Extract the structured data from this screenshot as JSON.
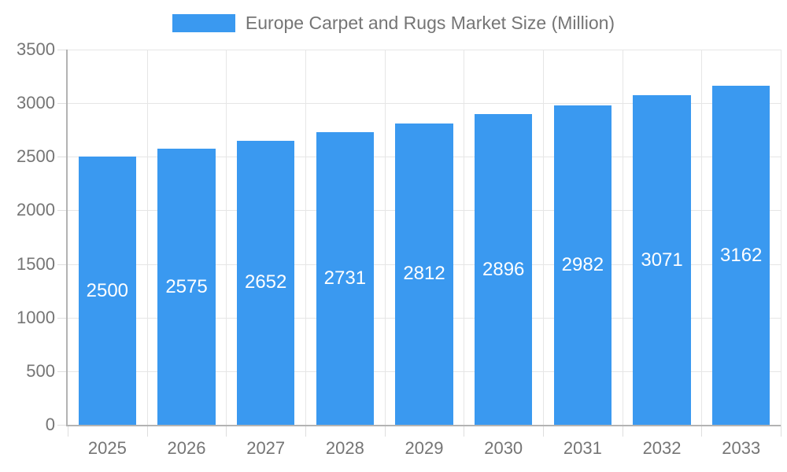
{
  "legend": {
    "position": "top-center",
    "items": [
      {
        "label": "Europe Carpet and Rugs Market Size (Million)",
        "swatch_color": "#3a99f0"
      }
    ]
  },
  "chart_data": {
    "type": "bar",
    "title": "Europe Carpet and Rugs Market Size (Million)",
    "categories": [
      "2025",
      "2026",
      "2027",
      "2028",
      "2029",
      "2030",
      "2031",
      "2032",
      "2033"
    ],
    "series": [
      {
        "name": "Europe Carpet and Rugs Market Size (Million)",
        "values": [
          2500,
          2575,
          2652,
          2731,
          2812,
          2896,
          2982,
          3071,
          3162
        ]
      }
    ],
    "xlabel": "",
    "ylabel": "",
    "ylim": [
      0,
      3500
    ],
    "yticks": [
      0,
      500,
      1000,
      1500,
      2000,
      2500,
      3000,
      3500
    ],
    "grid": true,
    "legend_position": "top",
    "value_labels": {
      "visible": true,
      "position": "center-of-bar",
      "color": "#ffffff"
    }
  },
  "colors": {
    "background": "#ffffff",
    "bar": "#3a99f0",
    "axis_line": "#b3b3b3",
    "gridline": "#e6e6e6",
    "tick": "#dedede",
    "text": "#757575",
    "value_label": "#ffffff"
  }
}
